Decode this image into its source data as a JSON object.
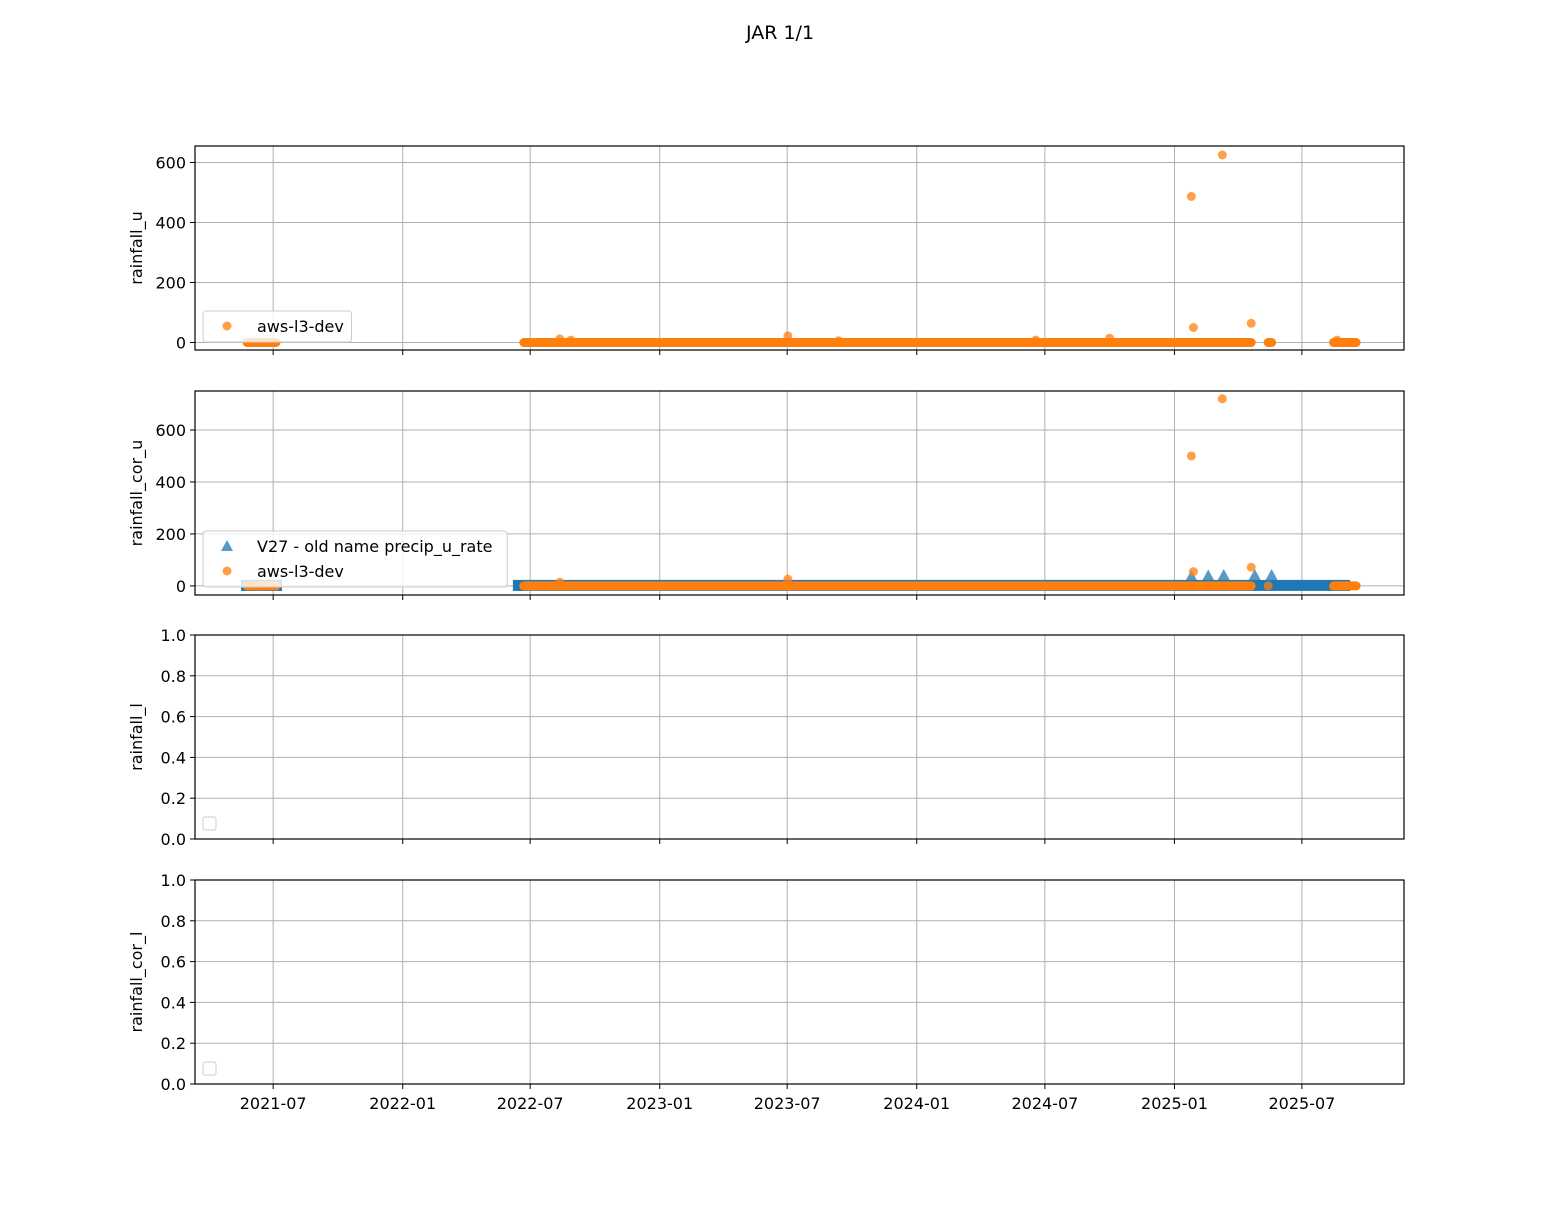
{
  "title": "JAR 1/1",
  "colors": {
    "orange": "#ff7f0e",
    "blue": "#1f77b4",
    "grid": "#b0b0b0",
    "axis": "#000000"
  },
  "chart_data": [
    {
      "type": "scatter",
      "ylabel": "rainfall_u",
      "ylim": [
        -25,
        655
      ],
      "yticks": [
        0,
        200,
        400,
        600
      ],
      "grid": true,
      "legend_position": "lower-left",
      "series": [
        {
          "name": "aws-l3-dev",
          "marker": "circle",
          "color": "#ff7f0e",
          "spans": [
            {
              "start": "2021-05-25",
              "end": "2021-07-05",
              "value": 0
            },
            {
              "start": "2022-06-22",
              "end": "2025-04-20",
              "value": 0
            },
            {
              "start": "2025-05-14",
              "end": "2025-05-19",
              "value": 0
            },
            {
              "start": "2025-08-15",
              "end": "2025-09-16",
              "value": 0
            }
          ],
          "points": [
            [
              "2022-08-12",
              12
            ],
            [
              "2022-08-28",
              8
            ],
            [
              "2023-07-02",
              22
            ],
            [
              "2023-09-12",
              6
            ],
            [
              "2024-06-18",
              8
            ],
            [
              "2024-10-01",
              14
            ],
            [
              "2025-01-25",
              487
            ],
            [
              "2025-01-28",
              50
            ],
            [
              "2025-03-10",
              625
            ],
            [
              "2025-04-20",
              64
            ],
            [
              "2025-08-20",
              8
            ]
          ]
        }
      ]
    },
    {
      "type": "scatter",
      "ylabel": "rainfall_cor_u",
      "ylim": [
        -35,
        750
      ],
      "yticks": [
        0,
        200,
        400,
        600
      ],
      "grid": true,
      "legend_position": "lower-left",
      "series": [
        {
          "name": "V27 - old name precip_u_rate",
          "marker": "triangle",
          "color": "#1f77b4",
          "spans": [
            {
              "start": "2021-05-25",
              "end": "2021-07-05",
              "value": 0
            },
            {
              "start": "2022-06-15",
              "end": "2025-08-30",
              "value": 0
            }
          ],
          "points": [
            [
              "2025-01-25",
              38
            ],
            [
              "2025-02-18",
              40
            ],
            [
              "2025-03-12",
              42
            ],
            [
              "2025-04-25",
              42
            ],
            [
              "2025-05-19",
              42
            ]
          ]
        },
        {
          "name": "aws-l3-dev",
          "marker": "circle",
          "color": "#ff7f0e",
          "spans": [
            {
              "start": "2021-05-25",
              "end": "2021-07-05",
              "value": 0
            },
            {
              "start": "2022-06-22",
              "end": "2025-04-20",
              "value": 0
            },
            {
              "start": "2025-08-15",
              "end": "2025-09-16",
              "value": 0
            }
          ],
          "points": [
            [
              "2022-08-12",
              14
            ],
            [
              "2023-07-02",
              26
            ],
            [
              "2025-01-25",
              500
            ],
            [
              "2025-01-28",
              55
            ],
            [
              "2025-03-10",
              720
            ],
            [
              "2025-04-20",
              72
            ],
            [
              "2025-05-14",
              0
            ]
          ]
        }
      ]
    },
    {
      "type": "scatter",
      "ylabel": "rainfall_l",
      "ylim": [
        0,
        1
      ],
      "yticks": [
        0.0,
        0.2,
        0.4,
        0.6,
        0.8,
        1.0
      ],
      "grid": true,
      "legend_position": "lower-left",
      "series": []
    },
    {
      "type": "scatter",
      "ylabel": "rainfall_cor_l",
      "ylim": [
        0,
        1
      ],
      "yticks": [
        0.0,
        0.2,
        0.4,
        0.6,
        0.8,
        1.0
      ],
      "grid": true,
      "legend_position": "lower-left",
      "series": []
    }
  ],
  "x_axis": {
    "range": [
      "2021-03-12",
      "2025-11-23"
    ],
    "ticks": [
      "2021-07",
      "2022-01",
      "2022-07",
      "2023-01",
      "2023-07",
      "2024-01",
      "2024-07",
      "2025-01",
      "2025-07"
    ]
  }
}
